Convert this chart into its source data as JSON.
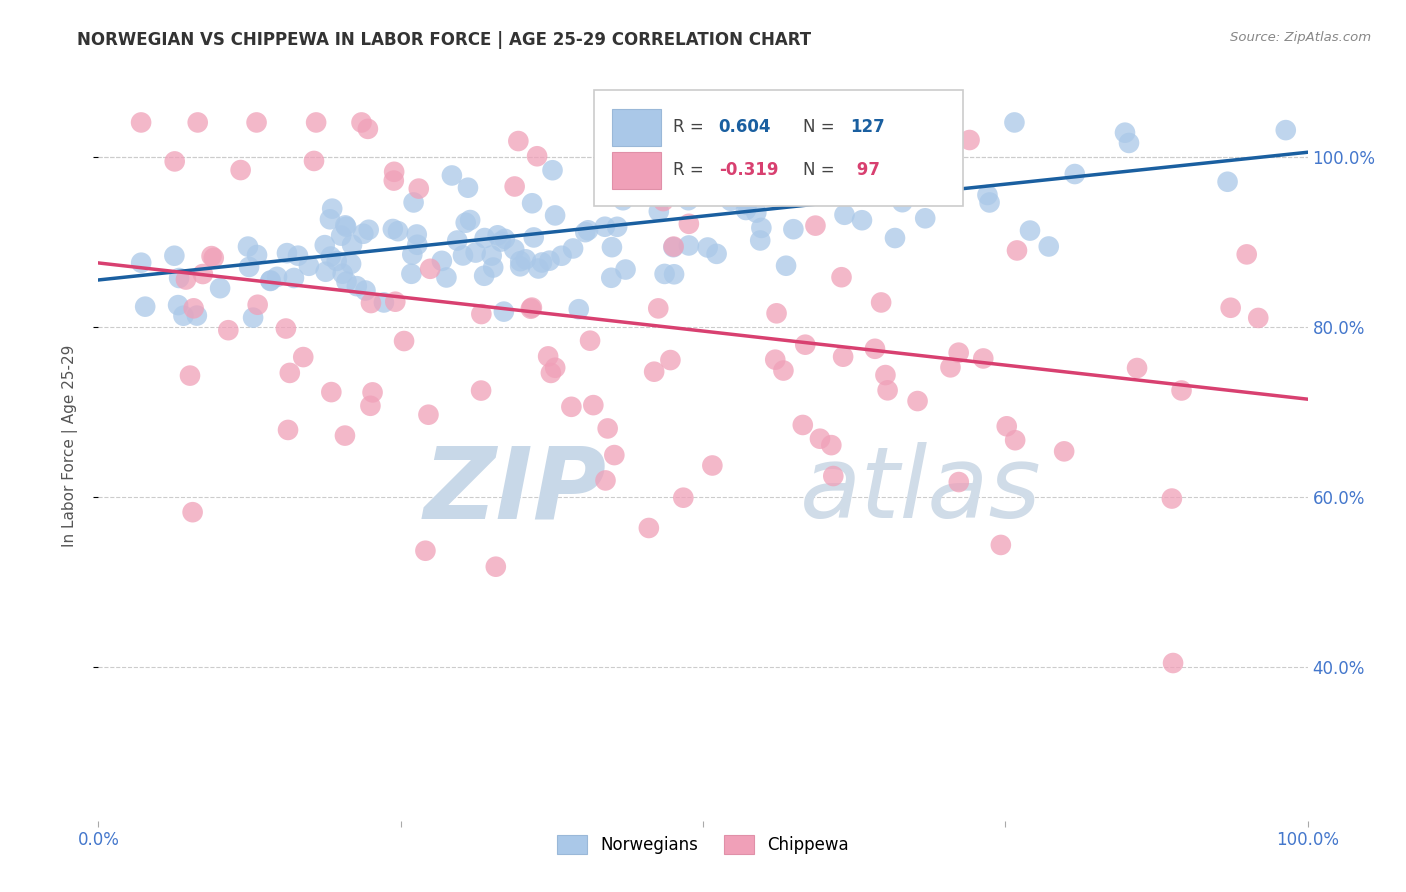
{
  "title": "NORWEGIAN VS CHIPPEWA IN LABOR FORCE | AGE 25-29 CORRELATION CHART",
  "source": "Source: ZipAtlas.com",
  "ylabel": "In Labor Force | Age 25-29",
  "watermark_zip": "ZIP",
  "watermark_atlas": "atlas",
  "norwegian_color": "#aac8e8",
  "norwegian_edge_color": "#aac8e8",
  "chippewa_color": "#f0a0b8",
  "chippewa_edge_color": "#f0a0b8",
  "norwegian_line_color": "#1a5fa0",
  "chippewa_line_color": "#d84070",
  "background_color": "#ffffff",
  "grid_color": "#cccccc",
  "tick_color": "#4477cc",
  "legend_r_color_nor": "#1a5fa0",
  "legend_r_color_chi": "#d84070",
  "legend_n_color": "#222222",
  "norwegian_R": 0.604,
  "norwegian_N": 127,
  "chippewa_R": -0.319,
  "chippewa_N": 97,
  "nor_line_x0": 0.0,
  "nor_line_y0": 0.855,
  "nor_line_x1": 1.0,
  "nor_line_y1": 1.005,
  "chi_line_x0": 0.0,
  "chi_line_y0": 0.875,
  "chi_line_x1": 1.0,
  "chi_line_y1": 0.715,
  "ylim_min": 0.22,
  "ylim_max": 1.1,
  "xlim_min": 0.0,
  "xlim_max": 1.0
}
